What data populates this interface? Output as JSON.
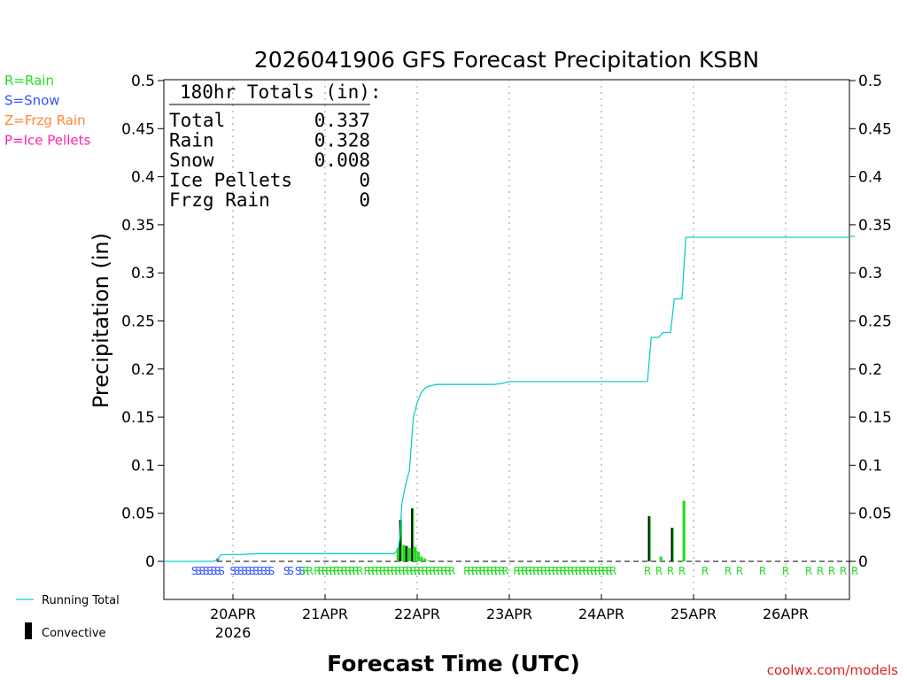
{
  "chart_data": {
    "type": "bar",
    "title": "2026041906 GFS Forecast Precipitation KSBN",
    "xlabel": "Forecast Time (UTC)",
    "ylabel": "Precipitation (in)",
    "ylim": [
      0,
      0.5
    ],
    "y_ticks": [
      {
        "value": 0,
        "label": "0"
      },
      {
        "value": 0.05,
        "label": "0.05"
      },
      {
        "value": 0.1,
        "label": "0.1"
      },
      {
        "value": 0.15,
        "label": "0.15"
      },
      {
        "value": 0.2,
        "label": "0.2"
      },
      {
        "value": 0.25,
        "label": "0.25"
      },
      {
        "value": 0.3,
        "label": "0.3"
      },
      {
        "value": 0.35,
        "label": "0.35"
      },
      {
        "value": 0.4,
        "label": "0.4"
      },
      {
        "value": 0.45,
        "label": "0.45"
      },
      {
        "value": 0.5,
        "label": "0.5"
      }
    ],
    "x_unit": "forecast hour",
    "xlim": [
      0,
      180
    ],
    "x_ticks": [
      {
        "hour": 18,
        "label": "20APR",
        "sublabel": "2026"
      },
      {
        "hour": 42,
        "label": "21APR"
      },
      {
        "hour": 66,
        "label": "22APR"
      },
      {
        "hour": 90,
        "label": "23APR"
      },
      {
        "hour": 114,
        "label": "24APR"
      },
      {
        "hour": 138,
        "label": "25APR"
      },
      {
        "hour": 162,
        "label": "26APR"
      }
    ],
    "grid": "vertical dotted at day boundaries",
    "legend": {
      "types": [
        {
          "label": "R=Rain",
          "color": "#22dd22"
        },
        {
          "label": "S=Snow",
          "color": "#3355ff"
        },
        {
          "label": "Z=Frzg Rain",
          "color": "#ff8833"
        },
        {
          "label": "P=Ice Pellets",
          "color": "#ff22aa"
        }
      ],
      "running_total_label": "Running Total",
      "convective_label": "Convective"
    },
    "totals": {
      "heading": "180hr Totals (in):",
      "rows": [
        {
          "label": "Total",
          "value": "0.337"
        },
        {
          "label": "Rain",
          "value": "0.328"
        },
        {
          "label": "Snow",
          "value": "0.008"
        },
        {
          "label": "Ice Pellets",
          "value": "0"
        },
        {
          "label": "Frzg Rain",
          "value": "0"
        }
      ]
    },
    "series": [
      {
        "name": "Running Total",
        "color": "#11cccc",
        "points": [
          [
            0,
            0
          ],
          [
            13,
            0
          ],
          [
            14,
            0.002
          ],
          [
            14.5,
            0.005
          ],
          [
            15,
            0.007
          ],
          [
            16,
            0.007
          ],
          [
            20,
            0.007
          ],
          [
            24,
            0.008
          ],
          [
            60,
            0.008
          ],
          [
            61,
            0.012
          ],
          [
            61.5,
            0.025
          ],
          [
            62,
            0.06
          ],
          [
            63,
            0.08
          ],
          [
            64,
            0.095
          ],
          [
            65,
            0.15
          ],
          [
            66,
            0.165
          ],
          [
            67,
            0.175
          ],
          [
            68,
            0.18
          ],
          [
            69,
            0.182
          ],
          [
            70,
            0.183
          ],
          [
            71,
            0.184
          ],
          [
            86,
            0.184
          ],
          [
            88,
            0.185
          ],
          [
            90,
            0.187
          ],
          [
            126,
            0.187
          ],
          [
            127,
            0.233
          ],
          [
            129,
            0.233
          ],
          [
            130,
            0.238
          ],
          [
            132,
            0.238
          ],
          [
            133,
            0.273
          ],
          [
            135,
            0.273
          ],
          [
            136,
            0.337
          ],
          [
            178,
            0.337
          ],
          [
            179,
            0.338
          ],
          [
            180,
            0.338
          ]
        ]
      }
    ],
    "bars": [
      {
        "hour": 14,
        "value": 0.003,
        "kind": "snow"
      },
      {
        "hour": 61,
        "value": 0.014,
        "kind": "rain"
      },
      {
        "hour": 61.7,
        "value": 0.043,
        "kind": "rain",
        "convective": true
      },
      {
        "hour": 62.5,
        "value": 0.017,
        "kind": "rain"
      },
      {
        "hour": 63.3,
        "value": 0.016,
        "kind": "rain",
        "convective": true
      },
      {
        "hour": 64,
        "value": 0.014,
        "kind": "rain"
      },
      {
        "hour": 64.8,
        "value": 0.055,
        "kind": "rain",
        "convective": true
      },
      {
        "hour": 65.5,
        "value": 0.015,
        "kind": "rain"
      },
      {
        "hour": 66.3,
        "value": 0.01,
        "kind": "rain"
      },
      {
        "hour": 67.1,
        "value": 0.005,
        "kind": "rain"
      },
      {
        "hour": 68,
        "value": 0.003,
        "kind": "rain"
      },
      {
        "hour": 69,
        "value": 0.001,
        "kind": "rain"
      },
      {
        "hour": 126.5,
        "value": 0.047,
        "kind": "rain",
        "convective": true
      },
      {
        "hour": 129.5,
        "value": 0.005,
        "kind": "rain"
      },
      {
        "hour": 132.5,
        "value": 0.035,
        "kind": "rain",
        "convective": true
      },
      {
        "hour": 135.5,
        "value": 0.063,
        "kind": "rain"
      }
    ],
    "ptype_markers": [
      {
        "hour": 8,
        "label": "S"
      },
      {
        "hour": 9,
        "label": "S"
      },
      {
        "hour": 10,
        "label": "S"
      },
      {
        "hour": 11,
        "label": "S"
      },
      {
        "hour": 12,
        "label": "S"
      },
      {
        "hour": 13,
        "label": "S"
      },
      {
        "hour": 14,
        "label": "S"
      },
      {
        "hour": 15,
        "label": "S"
      },
      {
        "hour": 18,
        "label": "S"
      },
      {
        "hour": 19,
        "label": "S"
      },
      {
        "hour": 20,
        "label": "S"
      },
      {
        "hour": 21,
        "label": "S"
      },
      {
        "hour": 22,
        "label": "S"
      },
      {
        "hour": 23,
        "label": "S"
      },
      {
        "hour": 24,
        "label": "S"
      },
      {
        "hour": 25,
        "label": "S"
      },
      {
        "hour": 26,
        "label": "S"
      },
      {
        "hour": 27,
        "label": "S"
      },
      {
        "hour": 28,
        "label": "S"
      },
      {
        "hour": 32,
        "label": "S"
      },
      {
        "hour": 33,
        "label": "S"
      },
      {
        "hour": 35,
        "label": "S"
      },
      {
        "hour": 36,
        "label": "S"
      },
      {
        "hour": 37,
        "label": "R"
      },
      {
        "hour": 38,
        "label": "R"
      },
      {
        "hour": 40,
        "label": "R"
      },
      {
        "hour": 41,
        "label": "R"
      },
      {
        "hour": 42,
        "label": "R"
      },
      {
        "hour": 43,
        "label": "R"
      },
      {
        "hour": 44,
        "label": "R"
      },
      {
        "hour": 45,
        "label": "R"
      },
      {
        "hour": 46,
        "label": "R"
      },
      {
        "hour": 47,
        "label": "R"
      },
      {
        "hour": 48,
        "label": "R"
      },
      {
        "hour": 49,
        "label": "R"
      },
      {
        "hour": 50,
        "label": "R"
      },
      {
        "hour": 51,
        "label": "R"
      },
      {
        "hour": 53,
        "label": "R"
      },
      {
        "hour": 54,
        "label": "R"
      },
      {
        "hour": 55,
        "label": "R"
      },
      {
        "hour": 56,
        "label": "R"
      },
      {
        "hour": 57,
        "label": "R"
      },
      {
        "hour": 58,
        "label": "R"
      },
      {
        "hour": 59,
        "label": "R"
      },
      {
        "hour": 60,
        "label": "R"
      },
      {
        "hour": 61,
        "label": "R"
      },
      {
        "hour": 62,
        "label": "R"
      },
      {
        "hour": 63,
        "label": "R"
      },
      {
        "hour": 64,
        "label": "R"
      },
      {
        "hour": 65,
        "label": "R"
      },
      {
        "hour": 66,
        "label": "R"
      },
      {
        "hour": 67,
        "label": "R"
      },
      {
        "hour": 68,
        "label": "R"
      },
      {
        "hour": 69,
        "label": "R"
      },
      {
        "hour": 70,
        "label": "R"
      },
      {
        "hour": 71,
        "label": "R"
      },
      {
        "hour": 72,
        "label": "R"
      },
      {
        "hour": 73,
        "label": "R"
      },
      {
        "hour": 74,
        "label": "R"
      },
      {
        "hour": 75,
        "label": "R"
      },
      {
        "hour": 79,
        "label": "R"
      },
      {
        "hour": 80,
        "label": "R"
      },
      {
        "hour": 81,
        "label": "R"
      },
      {
        "hour": 82,
        "label": "R"
      },
      {
        "hour": 83,
        "label": "R"
      },
      {
        "hour": 84,
        "label": "R"
      },
      {
        "hour": 85,
        "label": "R"
      },
      {
        "hour": 86,
        "label": "R"
      },
      {
        "hour": 87,
        "label": "R"
      },
      {
        "hour": 88,
        "label": "R"
      },
      {
        "hour": 89,
        "label": "R"
      },
      {
        "hour": 92,
        "label": "R"
      },
      {
        "hour": 93,
        "label": "R"
      },
      {
        "hour": 94,
        "label": "R"
      },
      {
        "hour": 95,
        "label": "R"
      },
      {
        "hour": 96,
        "label": "R"
      },
      {
        "hour": 97,
        "label": "R"
      },
      {
        "hour": 98,
        "label": "R"
      },
      {
        "hour": 99,
        "label": "R"
      },
      {
        "hour": 100,
        "label": "R"
      },
      {
        "hour": 101,
        "label": "R"
      },
      {
        "hour": 102,
        "label": "R"
      },
      {
        "hour": 103,
        "label": "R"
      },
      {
        "hour": 104,
        "label": "R"
      },
      {
        "hour": 105,
        "label": "R"
      },
      {
        "hour": 106,
        "label": "R"
      },
      {
        "hour": 107,
        "label": "R"
      },
      {
        "hour": 108,
        "label": "R"
      },
      {
        "hour": 109,
        "label": "R"
      },
      {
        "hour": 110,
        "label": "R"
      },
      {
        "hour": 111,
        "label": "R"
      },
      {
        "hour": 112,
        "label": "R"
      },
      {
        "hour": 113,
        "label": "R"
      },
      {
        "hour": 114,
        "label": "R"
      },
      {
        "hour": 115,
        "label": "R"
      },
      {
        "hour": 116,
        "label": "R"
      },
      {
        "hour": 117,
        "label": "R"
      },
      {
        "hour": 126,
        "label": "R"
      },
      {
        "hour": 129,
        "label": "R"
      },
      {
        "hour": 132,
        "label": "R"
      },
      {
        "hour": 135,
        "label": "R"
      },
      {
        "hour": 141,
        "label": "R"
      },
      {
        "hour": 147,
        "label": "R"
      },
      {
        "hour": 150,
        "label": "R"
      },
      {
        "hour": 156,
        "label": "R"
      },
      {
        "hour": 162,
        "label": "R"
      },
      {
        "hour": 168,
        "label": "R"
      },
      {
        "hour": 171,
        "label": "R"
      },
      {
        "hour": 174,
        "label": "R"
      },
      {
        "hour": 177,
        "label": "R"
      },
      {
        "hour": 180,
        "label": "R"
      }
    ]
  },
  "footer": {
    "credit": "coolwx.com/models"
  }
}
